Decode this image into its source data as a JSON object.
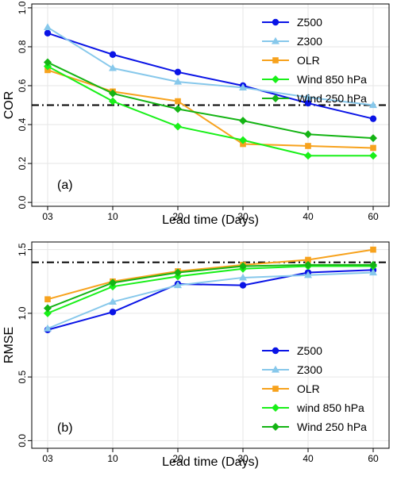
{
  "chart_data": [
    {
      "type": "line",
      "panel_label": "(a)",
      "xlabel": "Lead time (Days)",
      "ylabel": "COR",
      "categories": [
        "03",
        "10",
        "20",
        "30",
        "40",
        "60"
      ],
      "ylim": [
        -0.02,
        1.02
      ],
      "yticks": [
        "0.0",
        "0.2",
        "0.4",
        "0.6",
        "0.8",
        "1.0"
      ],
      "ytick_values": [
        0.0,
        0.2,
        0.4,
        0.6,
        0.8,
        1.0
      ],
      "grid": true,
      "reference_line": 0.5,
      "legend_position": "top-right",
      "series": [
        {
          "name": "Z500",
          "color": "#0a14e6",
          "marker": "circle",
          "values": [
            0.87,
            0.76,
            0.67,
            0.6,
            0.51,
            0.43
          ]
        },
        {
          "name": "Z300",
          "color": "#87c8eb",
          "marker": "triangle",
          "values": [
            0.9,
            0.69,
            0.62,
            0.59,
            0.54,
            0.5
          ]
        },
        {
          "name": "OLR",
          "color": "#f7a21d",
          "marker": "square",
          "values": [
            0.68,
            0.57,
            0.52,
            0.3,
            0.29,
            0.28
          ]
        },
        {
          "name": "Wind 850 hPa",
          "color": "#19f019",
          "marker": "diamond",
          "values": [
            0.7,
            0.52,
            0.39,
            0.32,
            0.24,
            0.24
          ]
        },
        {
          "name": "Wind 250 hPa",
          "color": "#14b414",
          "marker": "diamond",
          "values": [
            0.72,
            0.56,
            0.48,
            0.42,
            0.35,
            0.33
          ]
        }
      ]
    },
    {
      "type": "line",
      "panel_label": "(b)",
      "xlabel": "Lead time (Days)",
      "ylabel": "RMSE",
      "categories": [
        "03",
        "10",
        "20",
        "30",
        "40",
        "60"
      ],
      "ylim": [
        -0.06,
        1.56
      ],
      "yticks": [
        "0.0",
        "0.5",
        "1.0",
        "1.5"
      ],
      "ytick_values": [
        0.0,
        0.5,
        1.0,
        1.5
      ],
      "grid": true,
      "reference_line": 1.4,
      "legend_position": "bottom-right",
      "series": [
        {
          "name": "Z500",
          "color": "#0a14e6",
          "marker": "circle",
          "values": [
            0.87,
            1.01,
            1.23,
            1.22,
            1.32,
            1.34
          ]
        },
        {
          "name": "Z300",
          "color": "#87c8eb",
          "marker": "triangle",
          "values": [
            0.88,
            1.09,
            1.22,
            1.28,
            1.3,
            1.32
          ]
        },
        {
          "name": "OLR",
          "color": "#f7a21d",
          "marker": "square",
          "values": [
            1.11,
            1.25,
            1.33,
            1.38,
            1.42,
            1.5
          ]
        },
        {
          "name": "wind 850 hPa",
          "color": "#19f019",
          "marker": "diamond",
          "values": [
            1.0,
            1.21,
            1.29,
            1.35,
            1.37,
            1.37
          ]
        },
        {
          "name": "Wind 250 hPa",
          "color": "#14b414",
          "marker": "diamond",
          "values": [
            1.04,
            1.24,
            1.32,
            1.37,
            1.38,
            1.38
          ]
        }
      ]
    }
  ]
}
